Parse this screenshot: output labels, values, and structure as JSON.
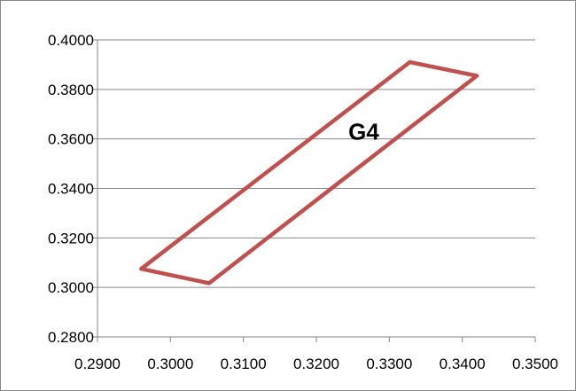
{
  "chart_data": {
    "type": "line",
    "title": "",
    "xlabel": "",
    "ylabel": "",
    "xlim": [
      0.29,
      0.35
    ],
    "ylim": [
      0.28,
      0.4
    ],
    "x_ticks": [
      "0.2900",
      "0.3000",
      "0.3100",
      "0.3200",
      "0.3300",
      "0.3400",
      "0.3500"
    ],
    "y_ticks": [
      "0.2800",
      "0.3000",
      "0.3200",
      "0.3400",
      "0.3600",
      "0.3800",
      "0.4000"
    ],
    "grid": "horizontal",
    "legend": "none",
    "series": [
      {
        "color": "#C0504D",
        "closed": true,
        "points": [
          {
            "x": 0.296,
            "y": 0.3075
          },
          {
            "x": 0.3053,
            "y": 0.3017
          },
          {
            "x": 0.342,
            "y": 0.3855
          },
          {
            "x": 0.3328,
            "y": 0.391
          },
          {
            "x": 0.296,
            "y": 0.3075
          }
        ]
      }
    ],
    "annotations": [
      {
        "text": "G4",
        "x": 0.3265,
        "y": 0.363
      }
    ]
  }
}
